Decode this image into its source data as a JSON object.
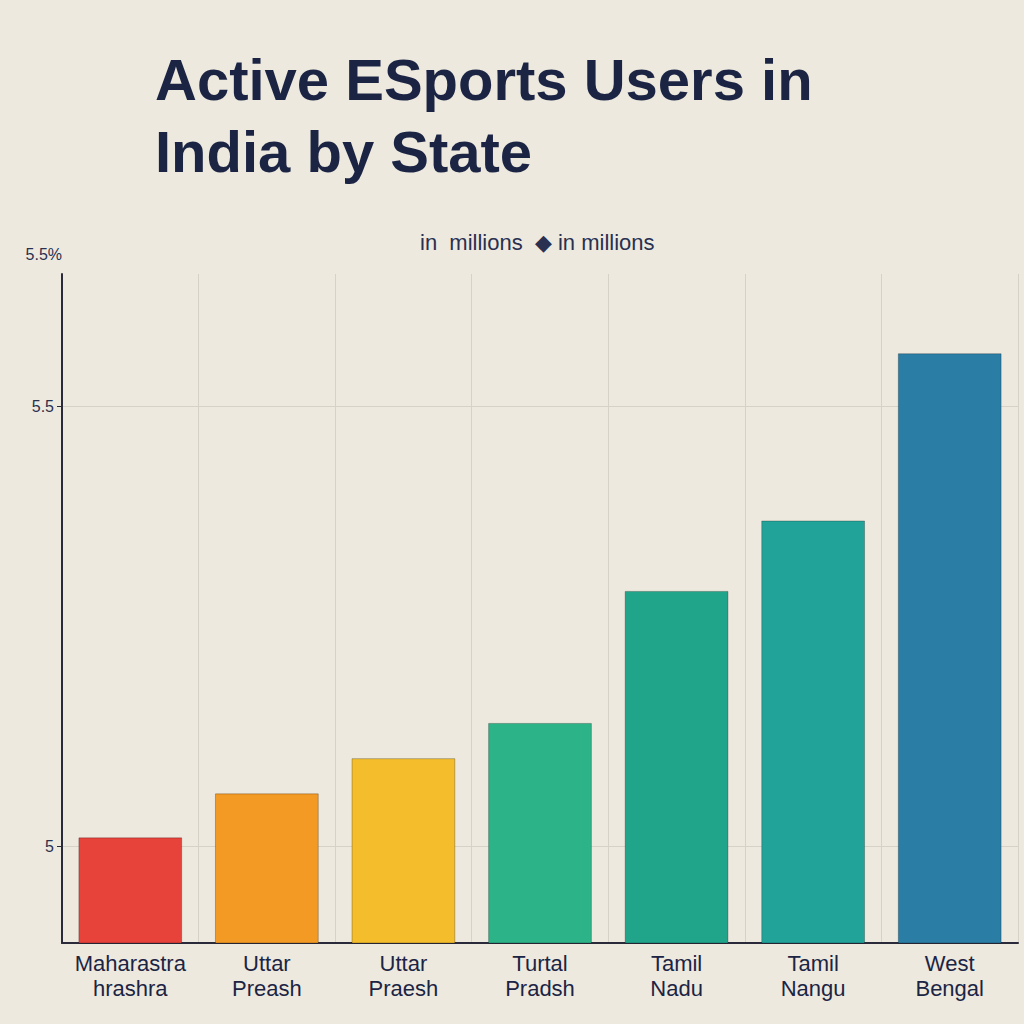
{
  "chart_data": {
    "type": "bar",
    "title": "Active ESports Users in India by State",
    "subtitle": "in  millions  ◆ in millions",
    "y_label": "5.5%",
    "categories": [
      "Maharastra\nhrashra",
      "Uttar\nPreash",
      "Uttar\nPraesh",
      "Turtal\nPradsh",
      "Tamil\nNadu",
      "Tamil\nNangu",
      "West\nBengal"
    ],
    "values": [
      5.01,
      5.06,
      5.1,
      5.14,
      5.29,
      5.37,
      5.56
    ],
    "colors": [
      "#e8433a",
      "#f39a24",
      "#f3bd2b",
      "#2db388",
      "#20a58a",
      "#22a399",
      "#2a7ea6"
    ],
    "ylim": [
      4.89,
      5.65
    ],
    "yticks": [
      5,
      5.5
    ],
    "grid": true
  }
}
